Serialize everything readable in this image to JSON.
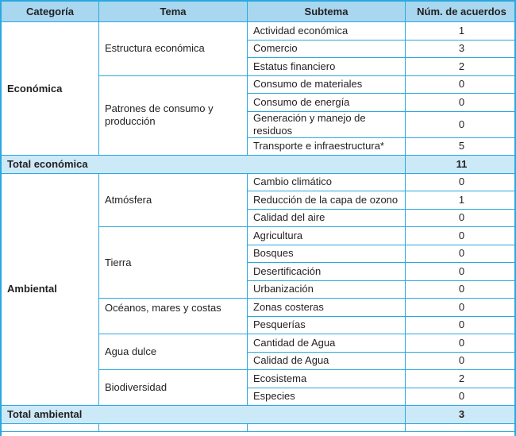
{
  "table": {
    "columns": [
      "Categoría",
      "Tema",
      "Subtema",
      "Núm. de acuerdos"
    ],
    "sections": [
      {
        "category": "Económica",
        "temas": [
          {
            "tema": "Estructura económica",
            "subtemas": [
              {
                "label": "Actividad económica",
                "value": "1"
              },
              {
                "label": "Comercio",
                "value": "3"
              },
              {
                "label": "Estatus financiero",
                "value": "2"
              }
            ]
          },
          {
            "tema": "Patrones de consumo y producción",
            "subtemas": [
              {
                "label": "Consumo de materiales",
                "value": "0"
              },
              {
                "label": "Consumo de energía",
                "value": "0"
              },
              {
                "label": "Generación y manejo de residuos",
                "value": "0"
              },
              {
                "label": "Transporte e infraestructura*",
                "value": "5"
              }
            ]
          }
        ],
        "total_label": "Total económica",
        "total_value": "11"
      },
      {
        "category": "Ambiental",
        "temas": [
          {
            "tema": "Atmósfera",
            "subtemas": [
              {
                "label": "Cambio climático",
                "value": "0"
              },
              {
                "label": "Reducción de la capa de ozono",
                "value": "1"
              },
              {
                "label": "Calidad del aire",
                "value": "0"
              }
            ]
          },
          {
            "tema": "Tierra",
            "subtemas": [
              {
                "label": "Agricultura",
                "value": "0"
              },
              {
                "label": "Bosques",
                "value": "0"
              },
              {
                "label": "Desertificación",
                "value": "0"
              },
              {
                "label": "Urbanización",
                "value": "0"
              }
            ]
          },
          {
            "tema": "Océanos, mares y costas",
            "valign": "top",
            "subtemas": [
              {
                "label": "Zonas costeras",
                "value": "0"
              },
              {
                "label": "Pesquerías",
                "value": "0"
              }
            ]
          },
          {
            "tema": "Agua dulce",
            "subtemas": [
              {
                "label": "Cantidad de Agua",
                "value": "0"
              },
              {
                "label": "Calidad de Agua",
                "value": "0"
              }
            ]
          },
          {
            "tema": "Biodiversidad",
            "subtemas": [
              {
                "label": "Ecosistema",
                "value": "2"
              },
              {
                "label": "Especies",
                "value": "0"
              }
            ]
          }
        ],
        "total_label": "Total ambiental",
        "total_value": "3"
      }
    ],
    "colors": {
      "border": "#2aa8e0",
      "header_bg": "#a8d7ef",
      "total_bg": "#cce9f8",
      "text": "#231f20"
    }
  }
}
